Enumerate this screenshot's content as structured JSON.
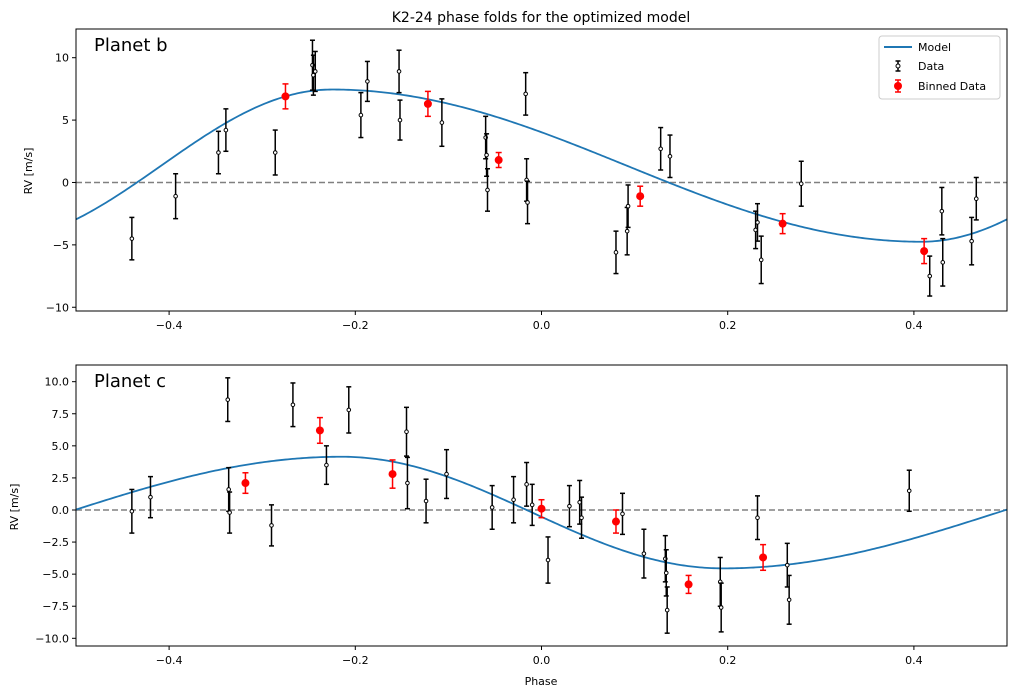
{
  "figure": {
    "title": "K2-24 phase folds for the optimized model"
  },
  "legend": {
    "model_label": "Model",
    "data_label": "Data",
    "binned_label": "Binned Data"
  },
  "colors": {
    "model": "#1f77b4",
    "data": "#000000",
    "binned": "#ff0000",
    "zero_line": "#808080"
  },
  "chart_data": [
    {
      "type": "scatter",
      "panel_label": "Planet b",
      "xlabel": "",
      "ylabel": "RV [m/s]",
      "xlim": [
        -0.5,
        0.5
      ],
      "ylim": [
        -10.3,
        12.3
      ],
      "xticks": [
        -0.4,
        -0.2,
        0.0,
        0.2,
        0.4
      ],
      "xtick_labels": [
        "−0.4",
        "−0.2",
        "0.0",
        "0.2",
        "0.4"
      ],
      "yticks": [
        -10,
        -5,
        0,
        5,
        10
      ],
      "ytick_labels": [
        "−10",
        "−5",
        "0",
        "5",
        "10"
      ],
      "legend_position": "upper right",
      "zero_line": 0,
      "model": {
        "name": "Model",
        "amplitude": 6.1,
        "offset": 1.35,
        "peak_phase": -0.225,
        "min_phase": 0.408
      },
      "series": [
        {
          "name": "Data",
          "points": [
            {
              "x": -0.44,
              "y": -4.5,
              "err": 1.7
            },
            {
              "x": -0.393,
              "y": -1.1,
              "err": 1.8
            },
            {
              "x": -0.347,
              "y": 2.4,
              "err": 1.7
            },
            {
              "x": -0.339,
              "y": 4.2,
              "err": 1.7
            },
            {
              "x": -0.286,
              "y": 2.4,
              "err": 1.8
            },
            {
              "x": -0.246,
              "y": 9.4,
              "err": 2.0
            },
            {
              "x": -0.245,
              "y": 8.6,
              "err": 1.6
            },
            {
              "x": -0.243,
              "y": 8.9,
              "err": 1.6
            },
            {
              "x": -0.194,
              "y": 5.4,
              "err": 1.8
            },
            {
              "x": -0.187,
              "y": 8.1,
              "err": 1.6
            },
            {
              "x": -0.153,
              "y": 8.9,
              "err": 1.7
            },
            {
              "x": -0.152,
              "y": 5.0,
              "err": 1.6
            },
            {
              "x": -0.107,
              "y": 4.8,
              "err": 1.9
            },
            {
              "x": -0.06,
              "y": 3.6,
              "err": 1.7
            },
            {
              "x": -0.059,
              "y": 2.2,
              "err": 1.7
            },
            {
              "x": -0.058,
              "y": -0.6,
              "err": 1.7
            },
            {
              "x": -0.017,
              "y": 7.1,
              "err": 1.7
            },
            {
              "x": -0.016,
              "y": 0.2,
              "err": 1.7
            },
            {
              "x": -0.015,
              "y": -1.6,
              "err": 1.7
            },
            {
              "x": 0.08,
              "y": -5.6,
              "err": 1.7
            },
            {
              "x": 0.092,
              "y": -3.9,
              "err": 1.9
            },
            {
              "x": 0.093,
              "y": -1.9,
              "err": 1.7
            },
            {
              "x": 0.128,
              "y": 2.7,
              "err": 1.7
            },
            {
              "x": 0.138,
              "y": 2.1,
              "err": 1.7
            },
            {
              "x": 0.23,
              "y": -3.8,
              "err": 1.5
            },
            {
              "x": 0.232,
              "y": -3.2,
              "err": 1.5
            },
            {
              "x": 0.236,
              "y": -6.2,
              "err": 1.9
            },
            {
              "x": 0.279,
              "y": -0.1,
              "err": 1.8
            },
            {
              "x": 0.417,
              "y": -7.5,
              "err": 1.6
            },
            {
              "x": 0.43,
              "y": -2.3,
              "err": 1.9
            },
            {
              "x": 0.431,
              "y": -6.4,
              "err": 1.9
            },
            {
              "x": 0.462,
              "y": -4.7,
              "err": 1.9
            },
            {
              "x": 0.467,
              "y": -1.3,
              "err": 1.7
            }
          ]
        },
        {
          "name": "Binned Data",
          "points": [
            {
              "x": -0.275,
              "y": 6.9,
              "err": 1.0
            },
            {
              "x": -0.122,
              "y": 6.3,
              "err": 1.0
            },
            {
              "x": -0.046,
              "y": 1.8,
              "err": 0.6
            },
            {
              "x": 0.106,
              "y": -1.1,
              "err": 0.8
            },
            {
              "x": 0.259,
              "y": -3.3,
              "err": 0.8
            },
            {
              "x": 0.411,
              "y": -5.5,
              "err": 1.0
            }
          ]
        }
      ]
    },
    {
      "type": "scatter",
      "panel_label": "Planet c",
      "xlabel": "Phase",
      "ylabel": "RV [m/s]",
      "xlim": [
        -0.5,
        0.5
      ],
      "ylim": [
        -10.6,
        11.3
      ],
      "xticks": [
        -0.4,
        -0.2,
        0.0,
        0.2,
        0.4
      ],
      "xtick_labels": [
        "−0.4",
        "−0.2",
        "0.0",
        "0.2",
        "0.4"
      ],
      "yticks": [
        -10,
        -7.5,
        -5,
        -2.5,
        0,
        2.5,
        5,
        7.5,
        10
      ],
      "ytick_labels": [
        "−10.0",
        "−7.5",
        "−5.0",
        "−2.5",
        "0.0",
        "2.5",
        "5.0",
        "7.5",
        "10.0"
      ],
      "legend_position": "",
      "zero_line": 0,
      "model": {
        "name": "Model",
        "amplitude": 4.35,
        "offset": -0.2,
        "peak_phase": -0.215,
        "min_phase": 0.195
      },
      "series": [
        {
          "name": "Data",
          "points": [
            {
              "x": -0.44,
              "y": -0.1,
              "err": 1.7
            },
            {
              "x": -0.42,
              "y": 1.0,
              "err": 1.6
            },
            {
              "x": -0.337,
              "y": 8.6,
              "err": 1.7
            },
            {
              "x": -0.336,
              "y": 1.6,
              "err": 1.7
            },
            {
              "x": -0.335,
              "y": -0.2,
              "err": 1.6
            },
            {
              "x": -0.29,
              "y": -1.2,
              "err": 1.6
            },
            {
              "x": -0.267,
              "y": 8.2,
              "err": 1.7
            },
            {
              "x": -0.231,
              "y": 3.5,
              "err": 1.5
            },
            {
              "x": -0.207,
              "y": 7.8,
              "err": 1.8
            },
            {
              "x": -0.145,
              "y": 6.1,
              "err": 1.9
            },
            {
              "x": -0.144,
              "y": 2.1,
              "err": 2.0
            },
            {
              "x": -0.124,
              "y": 0.7,
              "err": 1.7
            },
            {
              "x": -0.102,
              "y": 2.8,
              "err": 1.9
            },
            {
              "x": -0.053,
              "y": 0.2,
              "err": 1.7
            },
            {
              "x": -0.03,
              "y": 0.8,
              "err": 1.8
            },
            {
              "x": -0.016,
              "y": 2.0,
              "err": 1.7
            },
            {
              "x": -0.01,
              "y": 0.4,
              "err": 1.6
            },
            {
              "x": 0.007,
              "y": -3.9,
              "err": 1.8
            },
            {
              "x": 0.03,
              "y": 0.3,
              "err": 1.6
            },
            {
              "x": 0.041,
              "y": 0.6,
              "err": 1.7
            },
            {
              "x": 0.043,
              "y": -0.6,
              "err": 1.6
            },
            {
              "x": 0.087,
              "y": -0.3,
              "err": 1.6
            },
            {
              "x": 0.11,
              "y": -3.4,
              "err": 1.9
            },
            {
              "x": 0.133,
              "y": -3.8,
              "err": 1.8
            },
            {
              "x": 0.134,
              "y": -4.9,
              "err": 1.8
            },
            {
              "x": 0.135,
              "y": -7.8,
              "err": 1.8
            },
            {
              "x": 0.192,
              "y": -5.6,
              "err": 1.9
            },
            {
              "x": 0.193,
              "y": -7.6,
              "err": 1.9
            },
            {
              "x": 0.232,
              "y": -0.6,
              "err": 1.7
            },
            {
              "x": 0.264,
              "y": -4.3,
              "err": 1.7
            },
            {
              "x": 0.266,
              "y": -7.0,
              "err": 1.9
            },
            {
              "x": 0.395,
              "y": 1.5,
              "err": 1.6
            }
          ]
        },
        {
          "name": "Binned Data",
          "points": [
            {
              "x": -0.318,
              "y": 2.1,
              "err": 0.8
            },
            {
              "x": -0.238,
              "y": 6.2,
              "err": 1.0
            },
            {
              "x": -0.16,
              "y": 2.8,
              "err": 1.1
            },
            {
              "x": 0.0,
              "y": 0.1,
              "err": 0.7
            },
            {
              "x": 0.08,
              "y": -0.9,
              "err": 0.9
            },
            {
              "x": 0.158,
              "y": -5.8,
              "err": 0.7
            },
            {
              "x": 0.238,
              "y": -3.7,
              "err": 1.0
            }
          ]
        }
      ]
    }
  ]
}
